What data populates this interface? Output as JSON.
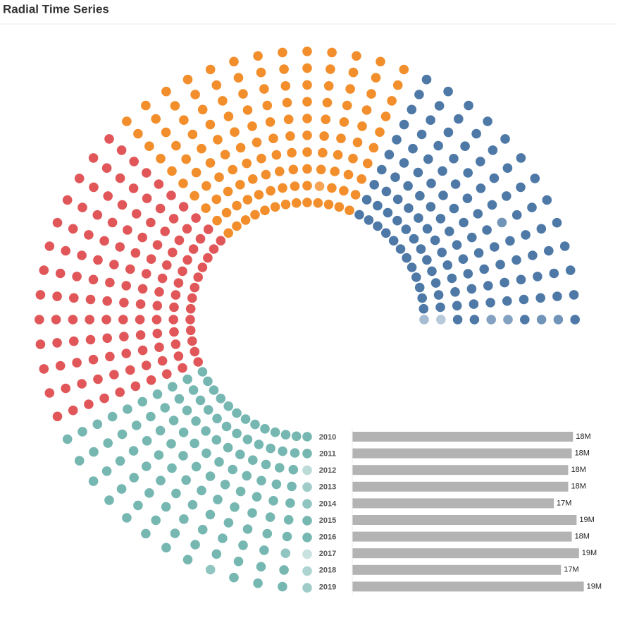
{
  "chart_data": {
    "type": "radial",
    "title": "Radial Time Series",
    "categories": [
      "2010",
      "2011",
      "2012",
      "2013",
      "2014",
      "2015",
      "2016",
      "2017",
      "2018",
      "2019"
    ],
    "values": [
      18400000,
      18300000,
      18000000,
      18000000,
      16800000,
      18700000,
      18300000,
      18900000,
      17400000,
      19300000
    ],
    "value_labels": [
      "18M",
      "18M",
      "18M",
      "18M",
      "17M",
      "19M",
      "18M",
      "19M",
      "17M",
      "19M"
    ],
    "bar_color": "#b3b3b3",
    "xlim": [
      0,
      19500000
    ],
    "colors": [
      "#4e79a7",
      "#f28e2b",
      "#e15759",
      "#76b7b2"
    ],
    "dots": [
      [
        0.5,
        1,
        1,
        1,
        1,
        1,
        1,
        1,
        1,
        1,
        1,
        1,
        1,
        1,
        1,
        1,
        1,
        1,
        1,
        1,
        1,
        1,
        1,
        1,
        1,
        1,
        1,
        1,
        1,
        1,
        1,
        1,
        1,
        1,
        1,
        1,
        1,
        1,
        1,
        1,
        1,
        1,
        1,
        1,
        1,
        1,
        1,
        1,
        1,
        1,
        1,
        1
      ],
      [
        0.4,
        1,
        1,
        1,
        1,
        1,
        1,
        1,
        1,
        1,
        1,
        1,
        1,
        1,
        1,
        1,
        0.8,
        1,
        1,
        1,
        1,
        1,
        1,
        1,
        1,
        1,
        1,
        1,
        1,
        1,
        1,
        1,
        1,
        1,
        1,
        1,
        1,
        1,
        1,
        1,
        1,
        1,
        1,
        1,
        1,
        1,
        1,
        1,
        1,
        1,
        1,
        1
      ],
      [
        1,
        1,
        1,
        1,
        1,
        1,
        1,
        1,
        1,
        1,
        1,
        1,
        1,
        1,
        1,
        1,
        1,
        1,
        1,
        1,
        1,
        1,
        1,
        1,
        1,
        1,
        1,
        1,
        1,
        1,
        1,
        1,
        1,
        1,
        1,
        1,
        1,
        1,
        1,
        1,
        1,
        1,
        1,
        1,
        1,
        1,
        1,
        1,
        1,
        1,
        1,
        0.5
      ],
      [
        1,
        1,
        1,
        1,
        1,
        1,
        1,
        1,
        1,
        1,
        1,
        1,
        1,
        1,
        1,
        1,
        1,
        1,
        1,
        1,
        1,
        1,
        1,
        1,
        1,
        1,
        1,
        1,
        1,
        1,
        1,
        1,
        1,
        1,
        1,
        1,
        1,
        1,
        1,
        1,
        1,
        1,
        1,
        1,
        1,
        1,
        1,
        1,
        1,
        1,
        1,
        0.7
      ],
      [
        0.7,
        1,
        1,
        1,
        1,
        1,
        1,
        1,
        1,
        1,
        1,
        1,
        1,
        1,
        1,
        1,
        1,
        1,
        1,
        1,
        1,
        1,
        1,
        1,
        1,
        1,
        1,
        1,
        1,
        1,
        1,
        1,
        1,
        1,
        1,
        1,
        1,
        1,
        1,
        1,
        1,
        1,
        1,
        1,
        1,
        1,
        1,
        1,
        1,
        1,
        1,
        0.8
      ],
      [
        0.7,
        1,
        1,
        1,
        1,
        1,
        1,
        1,
        1,
        1,
        1,
        1,
        1,
        1,
        1,
        1,
        1,
        1,
        1,
        1,
        1,
        1,
        1,
        1,
        1,
        1,
        1,
        1,
        1,
        1,
        1,
        1,
        1,
        1,
        1,
        1,
        1,
        1,
        1,
        1,
        1,
        1,
        1,
        1,
        1,
        1,
        1,
        1,
        1,
        1,
        1,
        1
      ],
      [
        1,
        1,
        1,
        1,
        1,
        0.8,
        1,
        1,
        1,
        1,
        1,
        1,
        1,
        1,
        1,
        1,
        1,
        1,
        1,
        1,
        1,
        1,
        1,
        1,
        1,
        1,
        1,
        1,
        1,
        1,
        1,
        1,
        1,
        1,
        1,
        1,
        1,
        1,
        1,
        1,
        1,
        1,
        1,
        1,
        1,
        1,
        1,
        1,
        1,
        1,
        1,
        1
      ],
      [
        0.8,
        1,
        1,
        1,
        1,
        1,
        1,
        1,
        1,
        1,
        1,
        1,
        1,
        1,
        1,
        1,
        1,
        1,
        1,
        1,
        1,
        1,
        1,
        1,
        1,
        1,
        1,
        1,
        1,
        1,
        1,
        1,
        1,
        1,
        1,
        1,
        1,
        1,
        1,
        1,
        1,
        1,
        1,
        1,
        1,
        1,
        1,
        1,
        1,
        1,
        0.8,
        0.4
      ],
      [
        0.8,
        1,
        1,
        1,
        1,
        1,
        1,
        1,
        1,
        1,
        1,
        1,
        1,
        1,
        1,
        1,
        1,
        1,
        1,
        1,
        1,
        1,
        1,
        1,
        1,
        1,
        1,
        1,
        1,
        1,
        1,
        1,
        1,
        1,
        1,
        1,
        1,
        1,
        1,
        1,
        1,
        1,
        1,
        1,
        1,
        1,
        1,
        1,
        1,
        1,
        1,
        0.6
      ],
      [
        1,
        1,
        1,
        1,
        1,
        1,
        1,
        1,
        1,
        1,
        1,
        1,
        1,
        1,
        1,
        1,
        1,
        1,
        1,
        1,
        1,
        1,
        1,
        1,
        1,
        1,
        1,
        1,
        1,
        1,
        1,
        1,
        1,
        1,
        1,
        1,
        1,
        1,
        1,
        1,
        1,
        1,
        1,
        1,
        1,
        1,
        1,
        0.8,
        1,
        1,
        1,
        0.7
      ]
    ]
  }
}
